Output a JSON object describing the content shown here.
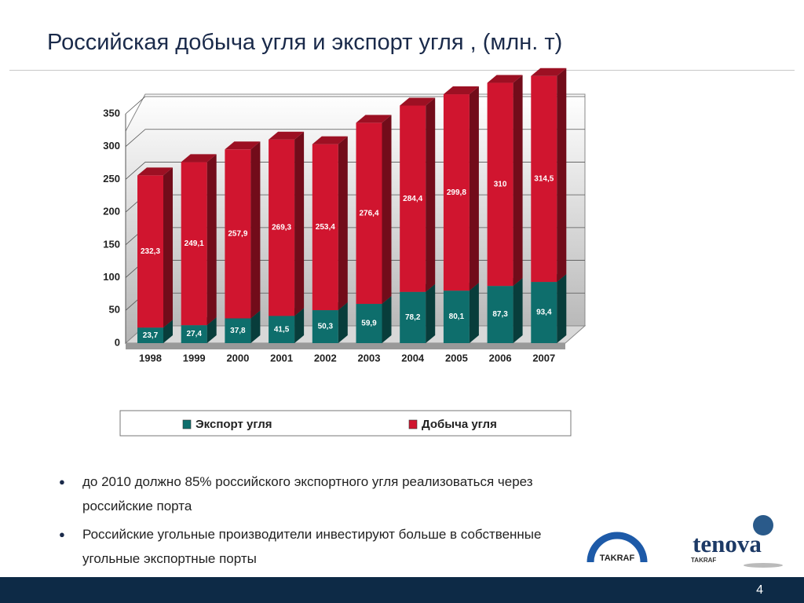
{
  "header": {
    "title": "Российская добыча угля и экспорт угля , (млн. т)"
  },
  "chart_data": {
    "type": "bar3d_stacked",
    "categories": [
      "1998",
      "1999",
      "2000",
      "2001",
      "2002",
      "2003",
      "2004",
      "2005",
      "2006",
      "2007"
    ],
    "series": [
      {
        "name": "Экспорт угля",
        "color": "#0e6e6c",
        "values": [
          23.7,
          27.4,
          37.8,
          41.5,
          50.3,
          59.9,
          78.2,
          80.1,
          87.3,
          93.4
        ],
        "value_labels": [
          "23,7",
          "27,4",
          "37,8",
          "41,5",
          "50,3",
          "59,9",
          "78,2",
          "80,1",
          "87,3",
          "93,4"
        ]
      },
      {
        "name": "Добыча угля",
        "color": "#d0152f",
        "values": [
          232.3,
          249.1,
          257.9,
          269.3,
          253.4,
          276.4,
          284.4,
          299.8,
          310,
          314.5
        ],
        "value_labels": [
          "232,3",
          "249,1",
          "257,9",
          "269,3",
          "253,4",
          "276,4",
          "284,4",
          "299,8",
          "310",
          "314,5"
        ]
      }
    ],
    "ylim": [
      0,
      350
    ],
    "yticks": [
      0,
      50,
      100,
      150,
      200,
      250,
      300,
      350
    ],
    "grid": true,
    "legend": "bottom"
  },
  "bullets": [
    "до 2010 должно 85% российского экспортного угля реализоваться через российские порта",
    "Российские угольные производители инвестируют больше в собственные угольные экспортные порты"
  ],
  "logos": {
    "left": "TAKRAF",
    "right": "tenova",
    "right_sub": "TAKRAF"
  },
  "footer": {
    "page": "4"
  }
}
